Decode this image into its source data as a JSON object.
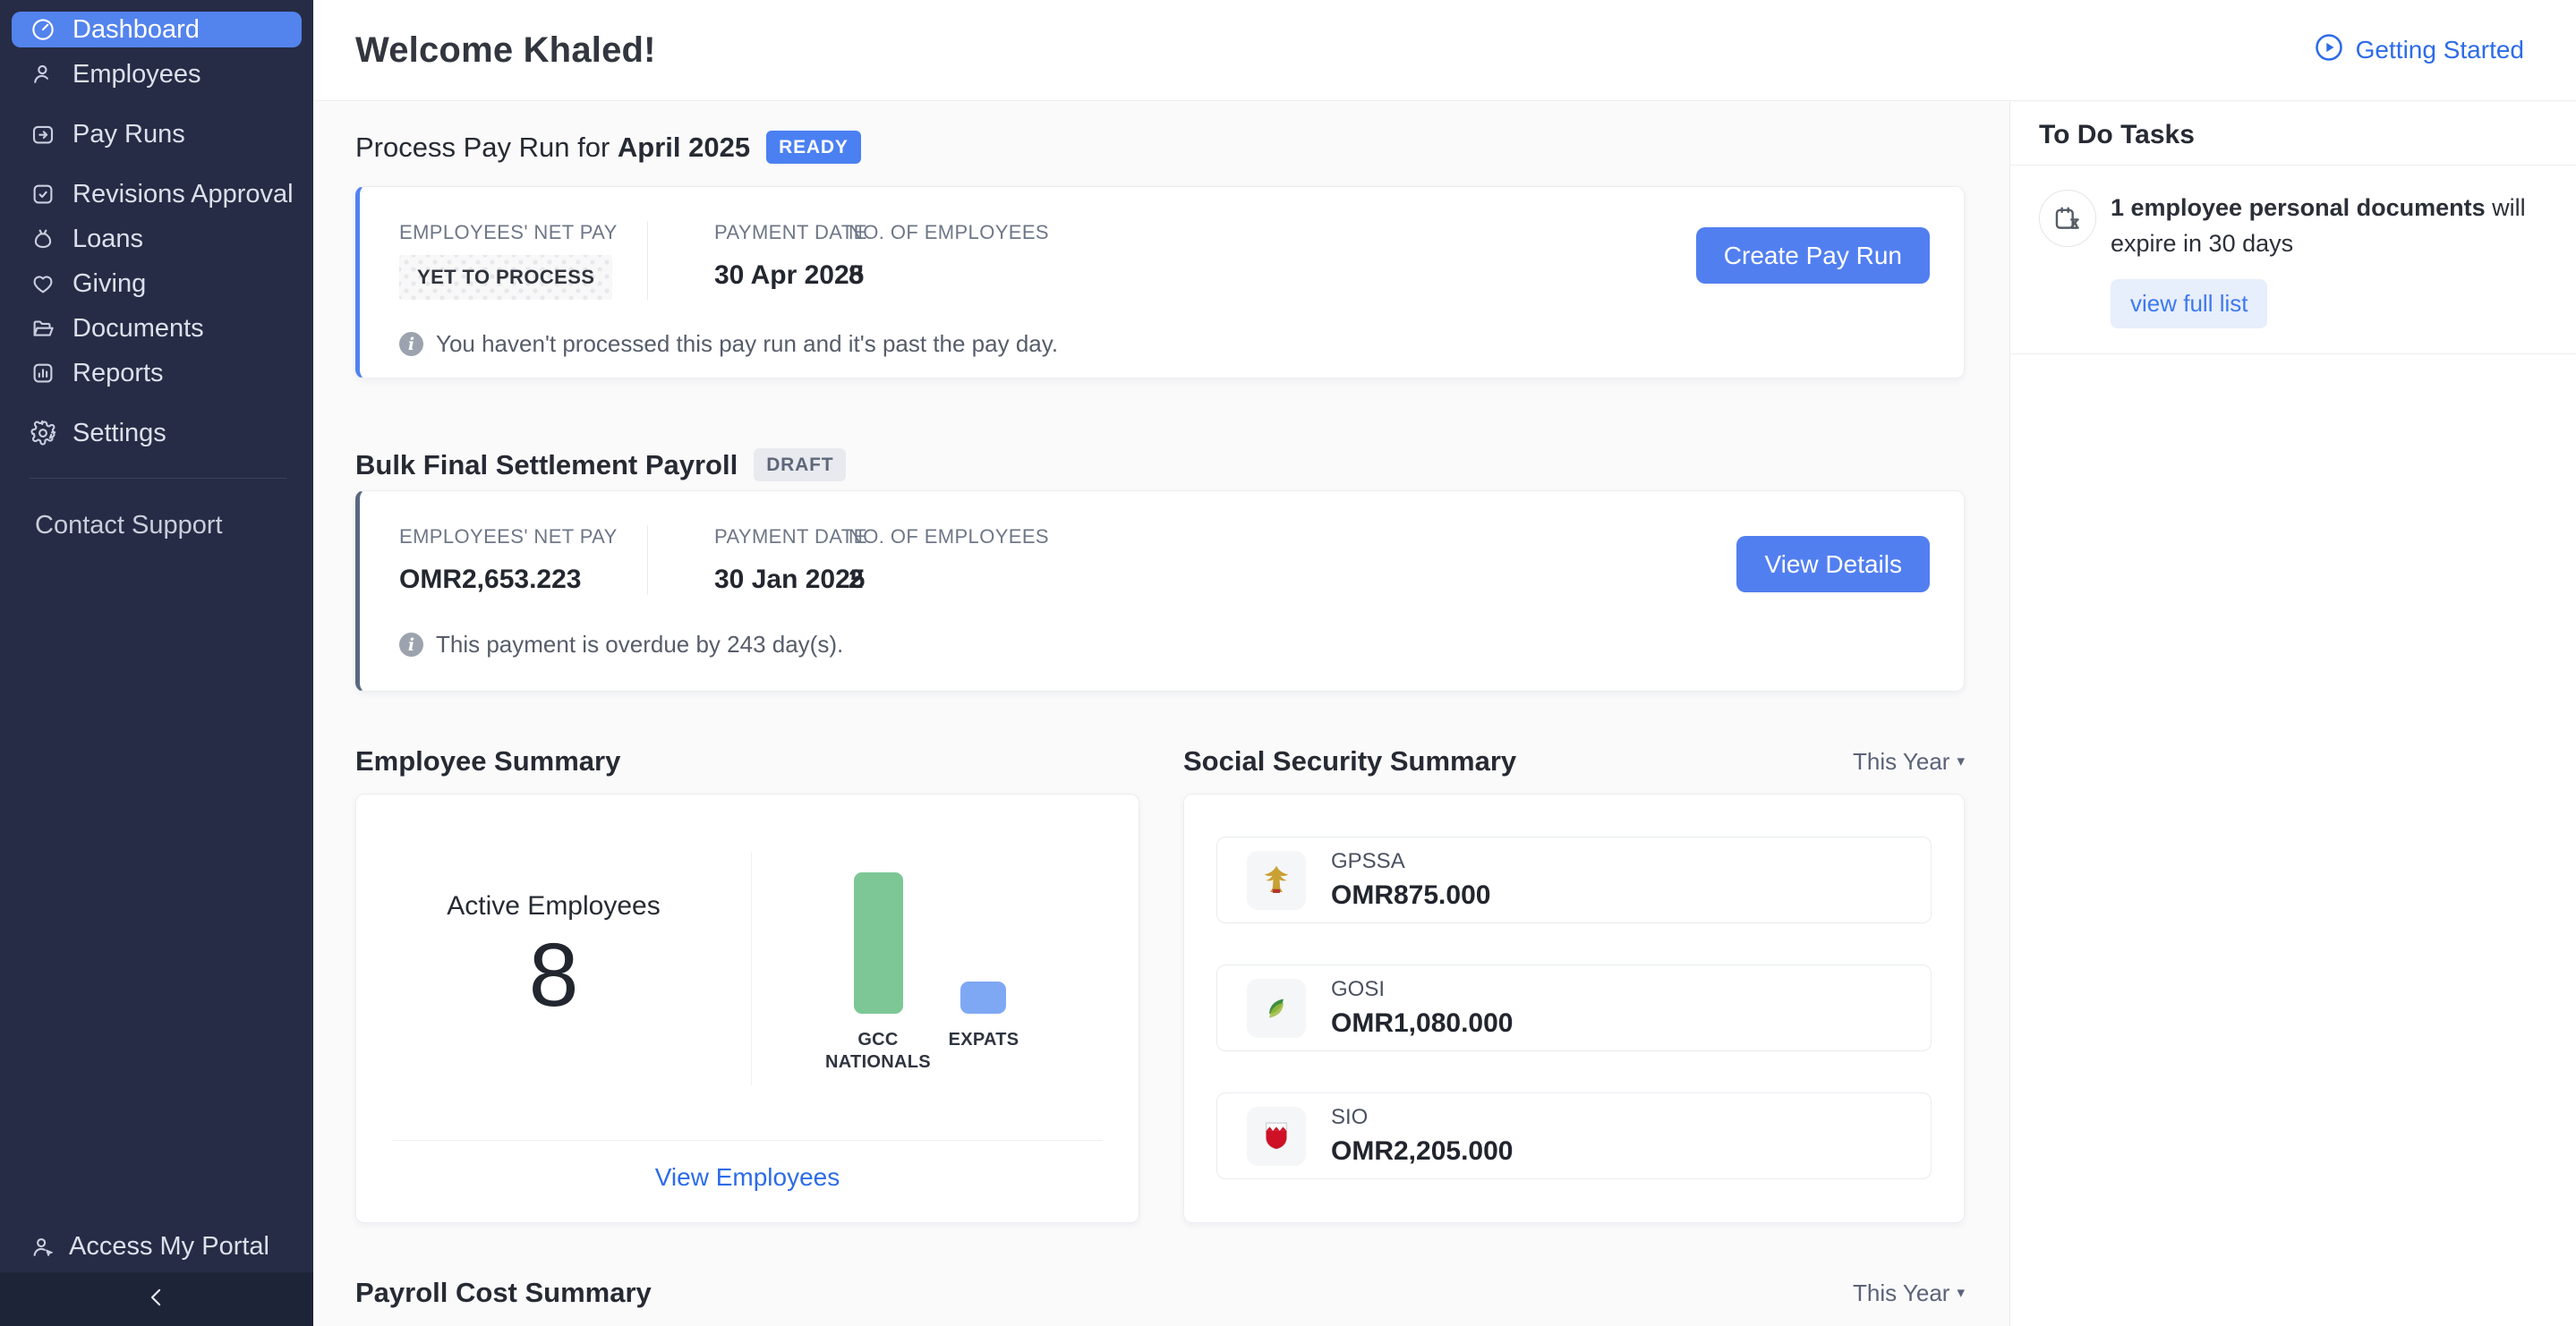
{
  "colors": {
    "sidebar_bg": "#262C45",
    "sidebar_footer_bg": "#1E2437",
    "active_item_blue": "#5383ED",
    "button_blue": "#527FF0",
    "link_blue": "#2D6BE8",
    "ready_badge_blue": "#4A80F2",
    "content_bg": "#FAFAFB",
    "gcc_bar_green": "#7CC795",
    "expats_bar_blue": "#7FA8F4"
  },
  "sidebar": {
    "items": [
      {
        "label": "Dashboard",
        "icon": "dashboard-icon",
        "active": true
      },
      {
        "label": "Employees",
        "icon": "employees-icon",
        "active": false
      },
      {
        "label": "Pay Runs",
        "icon": "pay-runs-icon",
        "active": false
      },
      {
        "label": "Revisions Approval",
        "icon": "revisions-approval-icon",
        "active": false
      },
      {
        "label": "Loans",
        "icon": "loans-icon",
        "active": false
      },
      {
        "label": "Giving",
        "icon": "giving-icon",
        "active": false
      },
      {
        "label": "Documents",
        "icon": "documents-icon",
        "active": false
      },
      {
        "label": "Reports",
        "icon": "reports-icon",
        "active": false
      },
      {
        "label": "Settings",
        "icon": "settings-icon",
        "active": false
      }
    ],
    "contact_support": "Contact Support",
    "access_my_portal": "Access My Portal"
  },
  "header": {
    "welcome": "Welcome Khaled!",
    "getting_started": "Getting Started"
  },
  "pay_run_section": {
    "title_prefix": "Process Pay Run for ",
    "title_period": "April 2025",
    "status_badge": "READY",
    "card": {
      "net_pay_label": "EMPLOYEES' NET PAY",
      "net_pay_value": "YET TO PROCESS",
      "payment_date_label": "PAYMENT DATE",
      "payment_date_value": "30 Apr 2025",
      "employees_label": "NO. OF EMPLOYEES",
      "employees_value": "8",
      "info_text": "You haven't processed this pay run and it's past the pay day.",
      "action_label": "Create Pay Run"
    }
  },
  "settlement_section": {
    "title": "Bulk Final Settlement Payroll",
    "status_badge": "DRAFT",
    "card": {
      "net_pay_label": "EMPLOYEES' NET PAY",
      "net_pay_value": "OMR2,653.223",
      "payment_date_label": "PAYMENT DATE",
      "payment_date_value": "30 Jan 2025",
      "employees_label": "NO. OF EMPLOYEES",
      "employees_value": "2",
      "info_text": "This payment is overdue by 243 day(s).",
      "action_label": "View Details"
    }
  },
  "employee_summary": {
    "title": "Employee Summary",
    "active_label": "Active Employees",
    "active_value": "8",
    "view_link": "View Employees"
  },
  "chart_data": {
    "type": "bar",
    "title": "Employee Summary",
    "categories": [
      "GCC NATIONALS",
      "EXPATS"
    ],
    "values": [
      7,
      1
    ],
    "colors": [
      "#7CC795",
      "#7FA8F4"
    ],
    "xlabel": "",
    "ylabel": "",
    "grid": false,
    "legend": "none",
    "annotations": {
      "active_employees": 8
    }
  },
  "social_security": {
    "title": "Social Security Summary",
    "filter_label": "This Year",
    "rows": [
      {
        "name": "GPSSA",
        "amount": "OMR875.000",
        "icon": "uae-emblem-icon"
      },
      {
        "name": "GOSI",
        "amount": "OMR1,080.000",
        "icon": "gosi-logo-icon"
      },
      {
        "name": "SIO",
        "amount": "OMR2,205.000",
        "icon": "bahrain-emblem-icon"
      }
    ]
  },
  "todo": {
    "title": "To Do Tasks",
    "task_bold": "1 employee personal documents",
    "task_rest": " will expire in 30 days",
    "action_label": "view full list"
  },
  "payroll_cost": {
    "title": "Payroll Cost Summary",
    "filter_label": "This Year"
  }
}
